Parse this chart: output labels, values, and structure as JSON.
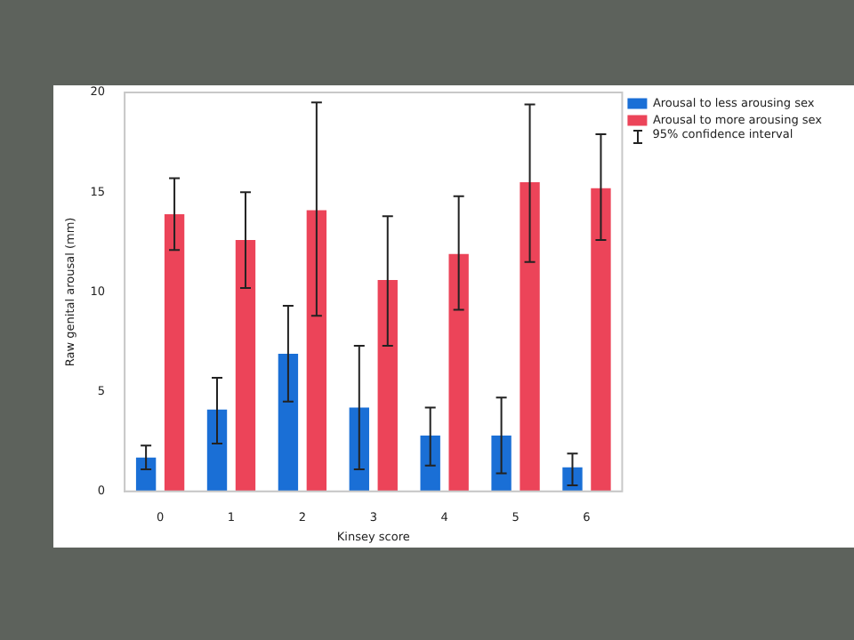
{
  "chart_data": {
    "type": "bar",
    "xlabel": "Kinsey score",
    "ylabel": "Raw genital arousal (mm)",
    "categories": [
      "0",
      "1",
      "2",
      "3",
      "4",
      "5",
      "6"
    ],
    "series": [
      {
        "name": "Arousal to less arousing sex",
        "color": "#1a6fd6",
        "values": [
          1.7,
          4.1,
          6.9,
          4.2,
          2.8,
          2.8,
          1.2
        ],
        "errors": [
          [
            1.1,
            2.3
          ],
          [
            2.4,
            5.7
          ],
          [
            4.5,
            9.3
          ],
          [
            1.1,
            7.3
          ],
          [
            1.3,
            4.2
          ],
          [
            0.9,
            4.7
          ],
          [
            0.3,
            1.9
          ]
        ]
      },
      {
        "name": "Arousal to more arousing sex",
        "color": "#ec4459",
        "values": [
          13.9,
          12.6,
          14.1,
          10.6,
          11.9,
          15.5,
          15.2
        ],
        "errors": [
          [
            12.1,
            15.7
          ],
          [
            10.2,
            15.0
          ],
          [
            8.8,
            19.5
          ],
          [
            7.3,
            13.8
          ],
          [
            9.1,
            14.8
          ],
          [
            11.5,
            19.4
          ],
          [
            12.6,
            17.9
          ]
        ]
      }
    ],
    "ylim": [
      0,
      20
    ],
    "yticks": [
      0,
      5,
      10,
      15,
      20
    ],
    "grid": false,
    "legend": "top right",
    "annotations": [
      "95% confidence interval"
    ]
  }
}
